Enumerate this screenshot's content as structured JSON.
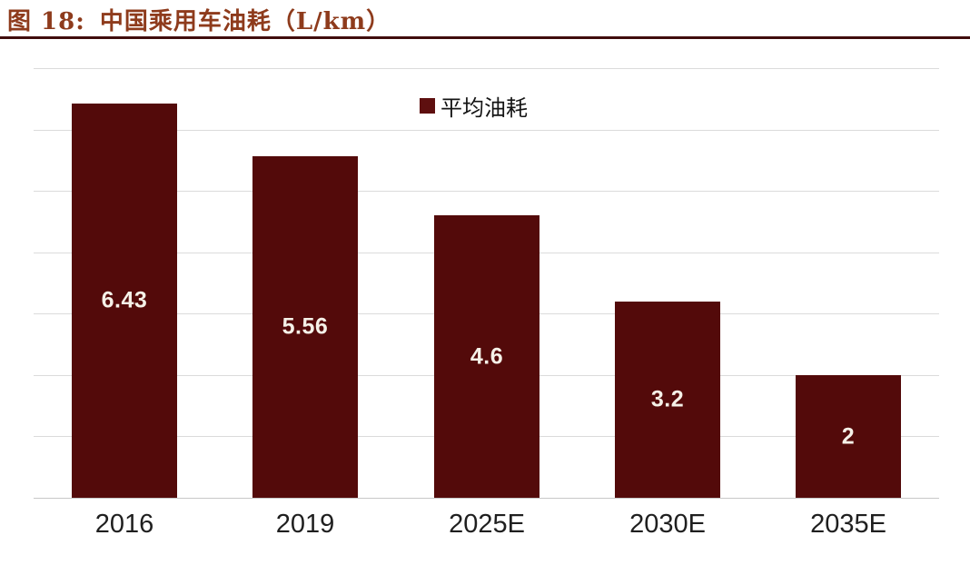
{
  "header": {
    "figure_label": "图 18:",
    "figure_title": "中国乘用车油耗（L/km）"
  },
  "legend": {
    "series_label": "平均油耗"
  },
  "chart_data": {
    "type": "bar",
    "title": "中国乘用车油耗（L/km）",
    "categories": [
      "2016",
      "2019",
      "2025E",
      "2030E",
      "2035E"
    ],
    "values": [
      6.43,
      5.56,
      4.6,
      3.2,
      2
    ],
    "value_labels": [
      "6.43",
      "5.56",
      "4.6",
      "3.2",
      "2"
    ],
    "series": [
      {
        "name": "平均油耗",
        "values": [
          6.43,
          5.56,
          4.6,
          3.2,
          2
        ]
      }
    ],
    "xlabel": "",
    "ylabel": "",
    "ylim": [
      0,
      7
    ],
    "gridline_interval": 1,
    "grid": "horizontal",
    "y_tick_labels_visible": false,
    "legend_position": "top-center",
    "value_label_position": "center-of-bar"
  },
  "colors": {
    "bar_fill": "#530A0A",
    "legend_swatch": "#5E0F0F",
    "title_text": "#8E3B1C",
    "title_rule": "#400D0D",
    "gridline": "#DBDBDB",
    "axis_line": "#C8C8C8",
    "value_label_text": "#F5F1E8",
    "category_label_text": "#1F1F1F"
  }
}
